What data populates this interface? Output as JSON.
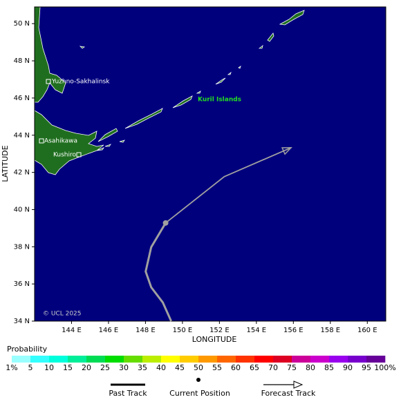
{
  "map": {
    "x_title": "LONGITUDE",
    "y_title": "LATITUDE",
    "lonlim": [
      142,
      161
    ],
    "latlim": [
      34,
      50.9
    ],
    "lonticks": [
      {
        "value": 144,
        "label": "144 E"
      },
      {
        "value": 146,
        "label": "146 E"
      },
      {
        "value": 148,
        "label": "148 E"
      },
      {
        "value": 150,
        "label": "150 E"
      },
      {
        "value": 152,
        "label": "152 E"
      },
      {
        "value": 154,
        "label": "154 E"
      },
      {
        "value": 156,
        "label": "156 E"
      },
      {
        "value": 158,
        "label": "158 E"
      },
      {
        "value": 160,
        "label": "160 E"
      }
    ],
    "latticks": [
      {
        "value": 34,
        "label": "34 N"
      },
      {
        "value": 36,
        "label": "36 N"
      },
      {
        "value": 38,
        "label": "38 N"
      },
      {
        "value": 40,
        "label": "40 N"
      },
      {
        "value": 42,
        "label": "42 N"
      },
      {
        "value": 44,
        "label": "44 N"
      },
      {
        "value": 46,
        "label": "46 N"
      },
      {
        "value": 48,
        "label": "48 N"
      },
      {
        "value": 50,
        "label": "50 N"
      }
    ],
    "places": [
      "Yuzhno-Sakhalinsk",
      "Kuril Islands",
      "Asahikawa",
      "Kushiro"
    ],
    "copyright": "© UCL 2025",
    "track": {
      "color": "#a0a0a0",
      "past": {
        "lon": [
          149.39,
          148.94,
          148.31,
          148.01,
          148.31,
          149.09
        ],
        "lat": [
          34.0,
          35.0,
          35.82,
          36.67,
          37.98,
          39.28
        ]
      },
      "current": {
        "lon": 149.09,
        "lat": 39.28
      },
      "forecast": {
        "lon": [
          149.09,
          152.26,
          155.88
        ],
        "lat": [
          39.28,
          41.77,
          43.33
        ]
      }
    }
  },
  "probability": {
    "title": "Probability",
    "ticks": [
      {
        "value": 1,
        "label": "1%"
      },
      5,
      10,
      15,
      20,
      25,
      30,
      35,
      40,
      45,
      50,
      55,
      60,
      65,
      70,
      75,
      80,
      85,
      90,
      95,
      {
        "value": 100,
        "label": "100%"
      }
    ],
    "colors": [
      "#99ffff",
      "#33ffff",
      "#00ffdd",
      "#00ee99",
      "#00dd55",
      "#00dd00",
      "#66dd00",
      "#bbee00",
      "#ffff00",
      "#ffcc00",
      "#ff9900",
      "#ff6600",
      "#ff3300",
      "#ff0000",
      "#dd0022",
      "#cc0099",
      "#cc00cc",
      "#9900ee",
      "#7700cc",
      "#660099"
    ]
  },
  "legend": {
    "past": "Past Track",
    "current": "Current Position",
    "forecast": "Forecast Track"
  }
}
